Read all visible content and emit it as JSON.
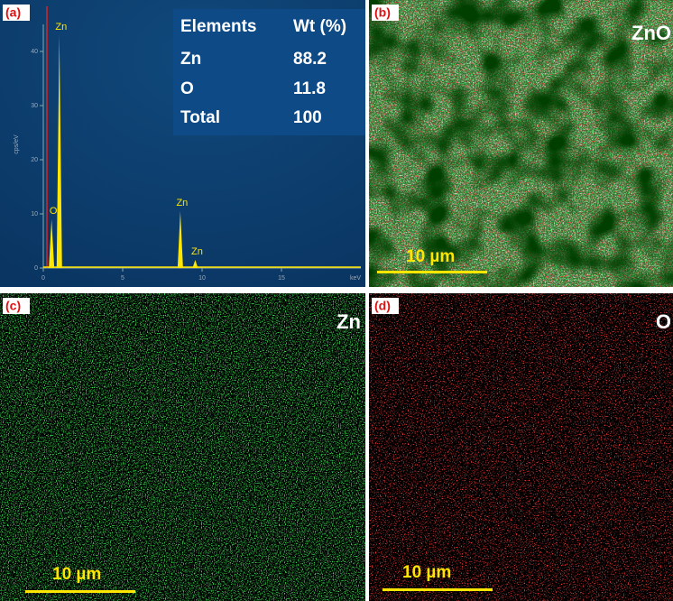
{
  "panels": [
    {
      "label": "(a)",
      "spectrum": {
        "y_label": "cps/eV",
        "x_label": "keV",
        "xlim": [
          0,
          20
        ],
        "ylim": [
          0,
          45
        ],
        "xticks": [
          0,
          5,
          10,
          15
        ],
        "yticks": [
          0,
          10,
          20,
          30,
          40
        ],
        "peaks": [
          {
            "label": "Zn",
            "x": 1.01,
            "y": 43
          },
          {
            "label": "O",
            "x": 0.52,
            "y": 9
          },
          {
            "label": "Zn",
            "x": 8.63,
            "y": 10.5
          },
          {
            "label": "Zn",
            "x": 9.57,
            "y": 1.5
          }
        ]
      },
      "table": {
        "header": [
          "Elements",
          "Wt (%)"
        ],
        "rows": [
          [
            "Zn",
            88.2
          ],
          [
            "O",
            11.8
          ],
          [
            "Total",
            100
          ]
        ]
      }
    },
    {
      "label": "(b)",
      "title": "ZnO",
      "scale_bar": "10 µm"
    },
    {
      "label": "(c)",
      "title": "Zn",
      "scale_bar": "10 µm"
    },
    {
      "label": "(d)",
      "title": "O",
      "scale_bar": "10 µm"
    }
  ]
}
